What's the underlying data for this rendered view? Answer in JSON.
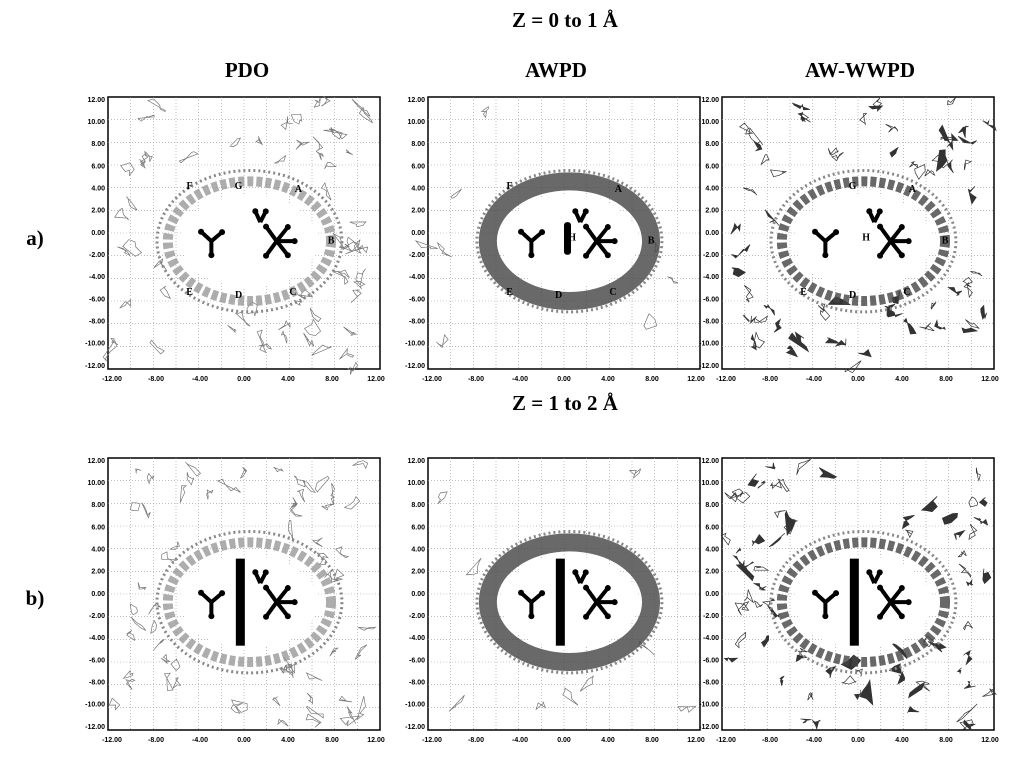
{
  "title_top": "Z = 0 to 1 Å",
  "title_bottom": "Z = 1 to 2 Å",
  "columns": [
    "PDO",
    "AWPD",
    "AW-WWPD"
  ],
  "rows": [
    "a)",
    "b)"
  ],
  "axis": {
    "yticks": [
      "12.00",
      "10.00",
      "8.00",
      "6.00",
      "4.00",
      "2.00",
      "0.00",
      "-2.00",
      "-4.00",
      "-6.00",
      "-8.00",
      "-10.00",
      "-12.00"
    ],
    "xticks": [
      "-12.00",
      "-8.00",
      "-4.00",
      "0.00",
      "4.00",
      "8.00",
      "12.00"
    ]
  },
  "site_labels": [
    [
      "F",
      "G",
      "A",
      "B",
      "C",
      "D",
      "E"
    ],
    [
      "F",
      "A",
      "H",
      "B",
      "C",
      "D",
      "E"
    ],
    [
      "G",
      "A",
      "H",
      "B",
      "C",
      "D",
      "E"
    ]
  ]
}
